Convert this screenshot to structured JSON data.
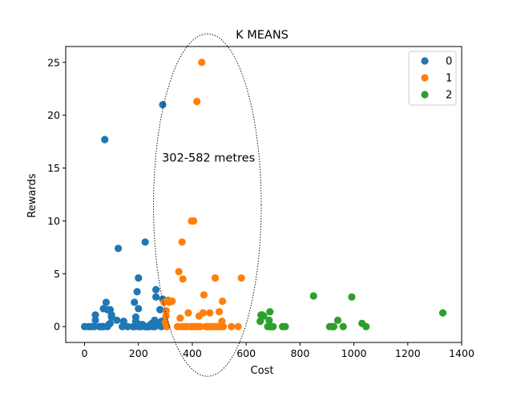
{
  "chart_data": {
    "type": "scatter",
    "title": "K MEANS",
    "xlabel": "Cost",
    "ylabel": "Rewards",
    "xlim": [
      -70,
      1400
    ],
    "ylim": [
      -1.5,
      26.5
    ],
    "xticks": [
      0,
      200,
      400,
      600,
      800,
      1000,
      1200,
      1400
    ],
    "yticks": [
      0,
      5,
      10,
      15,
      20,
      25
    ],
    "grid": false,
    "legend_position": "top-right",
    "annotation": {
      "text": "302-582 metres",
      "x": 460,
      "y": 16,
      "ellipse_center": [
        456,
        11.5
      ],
      "ellipse_semi_axes": [
        200,
        16.2
      ],
      "style": "dotted"
    },
    "series": [
      {
        "name": "0",
        "color": "#1f77b4",
        "points": [
          [
            0,
            0
          ],
          [
            15,
            0
          ],
          [
            25,
            0
          ],
          [
            35,
            0
          ],
          [
            40,
            0.6
          ],
          [
            40,
            1.1
          ],
          [
            55,
            0
          ],
          [
            65,
            0
          ],
          [
            70,
            0
          ],
          [
            70,
            1.7
          ],
          [
            75,
            17.7
          ],
          [
            80,
            2.3
          ],
          [
            85,
            0
          ],
          [
            85,
            1.6
          ],
          [
            90,
            0.2
          ],
          [
            95,
            0.3
          ],
          [
            95,
            1.6
          ],
          [
            100,
            0.9
          ],
          [
            100,
            1.1
          ],
          [
            120,
            0.6
          ],
          [
            125,
            7.4
          ],
          [
            140,
            0
          ],
          [
            145,
            0.5
          ],
          [
            160,
            0
          ],
          [
            180,
            0
          ],
          [
            185,
            0
          ],
          [
            185,
            2.3
          ],
          [
            190,
            0.9
          ],
          [
            190,
            0.5
          ],
          [
            195,
            3.3
          ],
          [
            200,
            1.7
          ],
          [
            200,
            4.6
          ],
          [
            200,
            0
          ],
          [
            205,
            0.2
          ],
          [
            210,
            0
          ],
          [
            215,
            0.2
          ],
          [
            225,
            8
          ],
          [
            225,
            0
          ],
          [
            230,
            0
          ],
          [
            235,
            0
          ],
          [
            240,
            0
          ],
          [
            245,
            0.2
          ],
          [
            250,
            0.3
          ],
          [
            255,
            0
          ],
          [
            260,
            0
          ],
          [
            260,
            0.6
          ],
          [
            265,
            3.5
          ],
          [
            265,
            2.8
          ],
          [
            270,
            0.1
          ],
          [
            275,
            0.2
          ],
          [
            280,
            1.6
          ],
          [
            285,
            0
          ],
          [
            285,
            0.5
          ],
          [
            290,
            21
          ],
          [
            290,
            2.6
          ],
          [
            295,
            0.2
          ]
        ]
      },
      {
        "name": "1",
        "color": "#ff7f0e",
        "points": [
          [
            295,
            2.3
          ],
          [
            300,
            0.4
          ],
          [
            302,
            1
          ],
          [
            303,
            1.5
          ],
          [
            305,
            0
          ],
          [
            310,
            2.5
          ],
          [
            315,
            2.3
          ],
          [
            325,
            2.4
          ],
          [
            345,
            0
          ],
          [
            350,
            5.2
          ],
          [
            355,
            0.8
          ],
          [
            360,
            0
          ],
          [
            362,
            8
          ],
          [
            365,
            4.5
          ],
          [
            370,
            0
          ],
          [
            380,
            0
          ],
          [
            385,
            1.3
          ],
          [
            395,
            0
          ],
          [
            397,
            10
          ],
          [
            400,
            0
          ],
          [
            405,
            10
          ],
          [
            410,
            0
          ],
          [
            415,
            0
          ],
          [
            417,
            21.3
          ],
          [
            420,
            0
          ],
          [
            425,
            1
          ],
          [
            430,
            0
          ],
          [
            435,
            25
          ],
          [
            440,
            1.3
          ],
          [
            443,
            3
          ],
          [
            450,
            0
          ],
          [
            455,
            0
          ],
          [
            460,
            0
          ],
          [
            465,
            1.3
          ],
          [
            470,
            0
          ],
          [
            480,
            0
          ],
          [
            485,
            4.6
          ],
          [
            490,
            0
          ],
          [
            495,
            0
          ],
          [
            500,
            1.4
          ],
          [
            505,
            0
          ],
          [
            510,
            0.5
          ],
          [
            512,
            2.4
          ],
          [
            515,
            0
          ],
          [
            545,
            0
          ],
          [
            570,
            0
          ],
          [
            582,
            4.6
          ]
        ]
      },
      {
        "name": "2",
        "color": "#2ca02c",
        "points": [
          [
            652,
            0.5
          ],
          [
            655,
            1.1
          ],
          [
            660,
            1.1
          ],
          [
            665,
            1
          ],
          [
            680,
            0
          ],
          [
            685,
            0.6
          ],
          [
            688,
            1.4
          ],
          [
            690,
            0
          ],
          [
            695,
            0
          ],
          [
            700,
            0
          ],
          [
            735,
            0
          ],
          [
            745,
            0
          ],
          [
            850,
            2.9
          ],
          [
            910,
            0
          ],
          [
            920,
            0
          ],
          [
            925,
            0
          ],
          [
            940,
            0.6
          ],
          [
            960,
            0
          ],
          [
            992,
            2.8
          ],
          [
            1030,
            0.3
          ],
          [
            1045,
            0
          ],
          [
            1330,
            1.3
          ]
        ]
      }
    ]
  }
}
